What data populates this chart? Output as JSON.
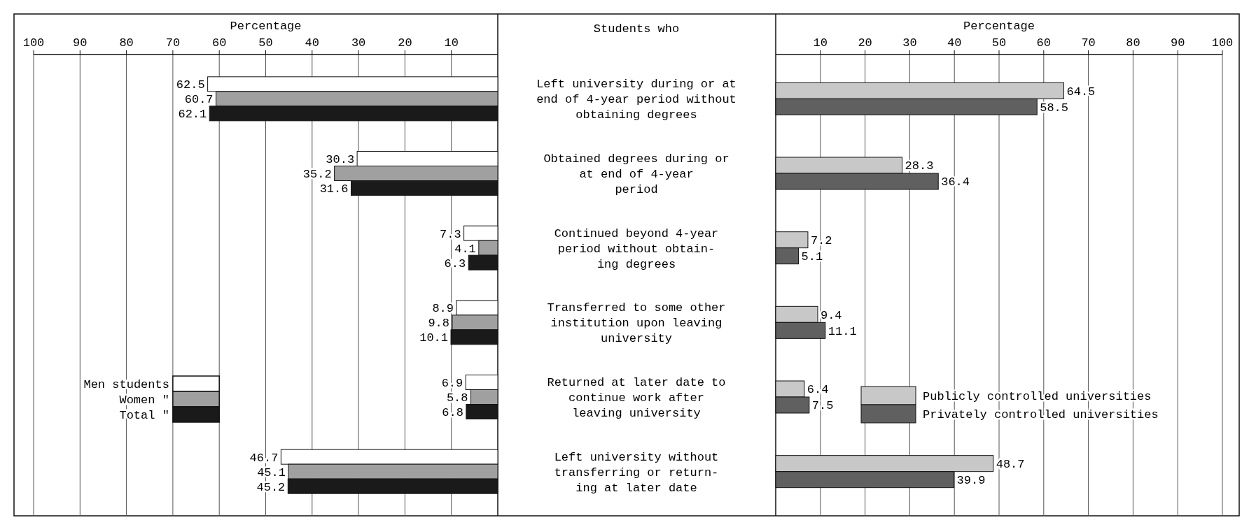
{
  "chart_data": [
    {
      "type": "bar",
      "orientation": "horizontal",
      "xlabel": "Percentage",
      "ylabel": "Students who",
      "categories": [
        "Left university during or at\nend of 4-year period without\nobtaining degrees",
        "Obtained degrees during or\nat end of 4-year\nperiod",
        "Continued beyond 4-year\nperiod without obtain-\ning degrees",
        "Transferred to some other\ninstitution upon leaving\nuniversity",
        "Returned at later date to\ncontinue work after\nleaving university",
        "Left university without\ntransferring or return-\ning at later date"
      ],
      "series": [
        {
          "name": "Men students",
          "color": "#ffffff",
          "values": [
            62.5,
            30.3,
            7.3,
            8.9,
            6.9,
            46.7
          ]
        },
        {
          "name": "Women \"",
          "color": "#a0a0a0",
          "values": [
            60.7,
            35.2,
            4.1,
            9.8,
            5.8,
            45.1
          ]
        },
        {
          "name": "Total \"",
          "color": "#1a1a1a",
          "values": [
            62.1,
            31.6,
            6.3,
            10.1,
            6.8,
            45.2
          ]
        }
      ],
      "xlim": [
        100,
        0
      ],
      "xticks": [
        100,
        90,
        80,
        70,
        60,
        50,
        40,
        30,
        20,
        10
      ],
      "grid": "x",
      "legend": "bottom left",
      "data_labels": true
    },
    {
      "type": "bar",
      "orientation": "horizontal",
      "xlabel": "Percentage",
      "categories": [
        null,
        null,
        null,
        null,
        null,
        null
      ],
      "series": [
        {
          "name": "Publicly controlled universities",
          "color": "#c8c8c8",
          "values": [
            64.5,
            28.3,
            7.2,
            9.4,
            6.4,
            48.7
          ]
        },
        {
          "name": "Privately controlled universities",
          "color": "#606060",
          "values": [
            58.5,
            36.4,
            5.1,
            11.1,
            7.5,
            39.9
          ]
        }
      ],
      "xlim": [
        0,
        100
      ],
      "xticks": [
        10,
        20,
        30,
        40,
        50,
        60,
        70,
        80,
        90,
        100
      ],
      "grid": "x",
      "legend": "bottom right",
      "data_labels": true
    }
  ]
}
